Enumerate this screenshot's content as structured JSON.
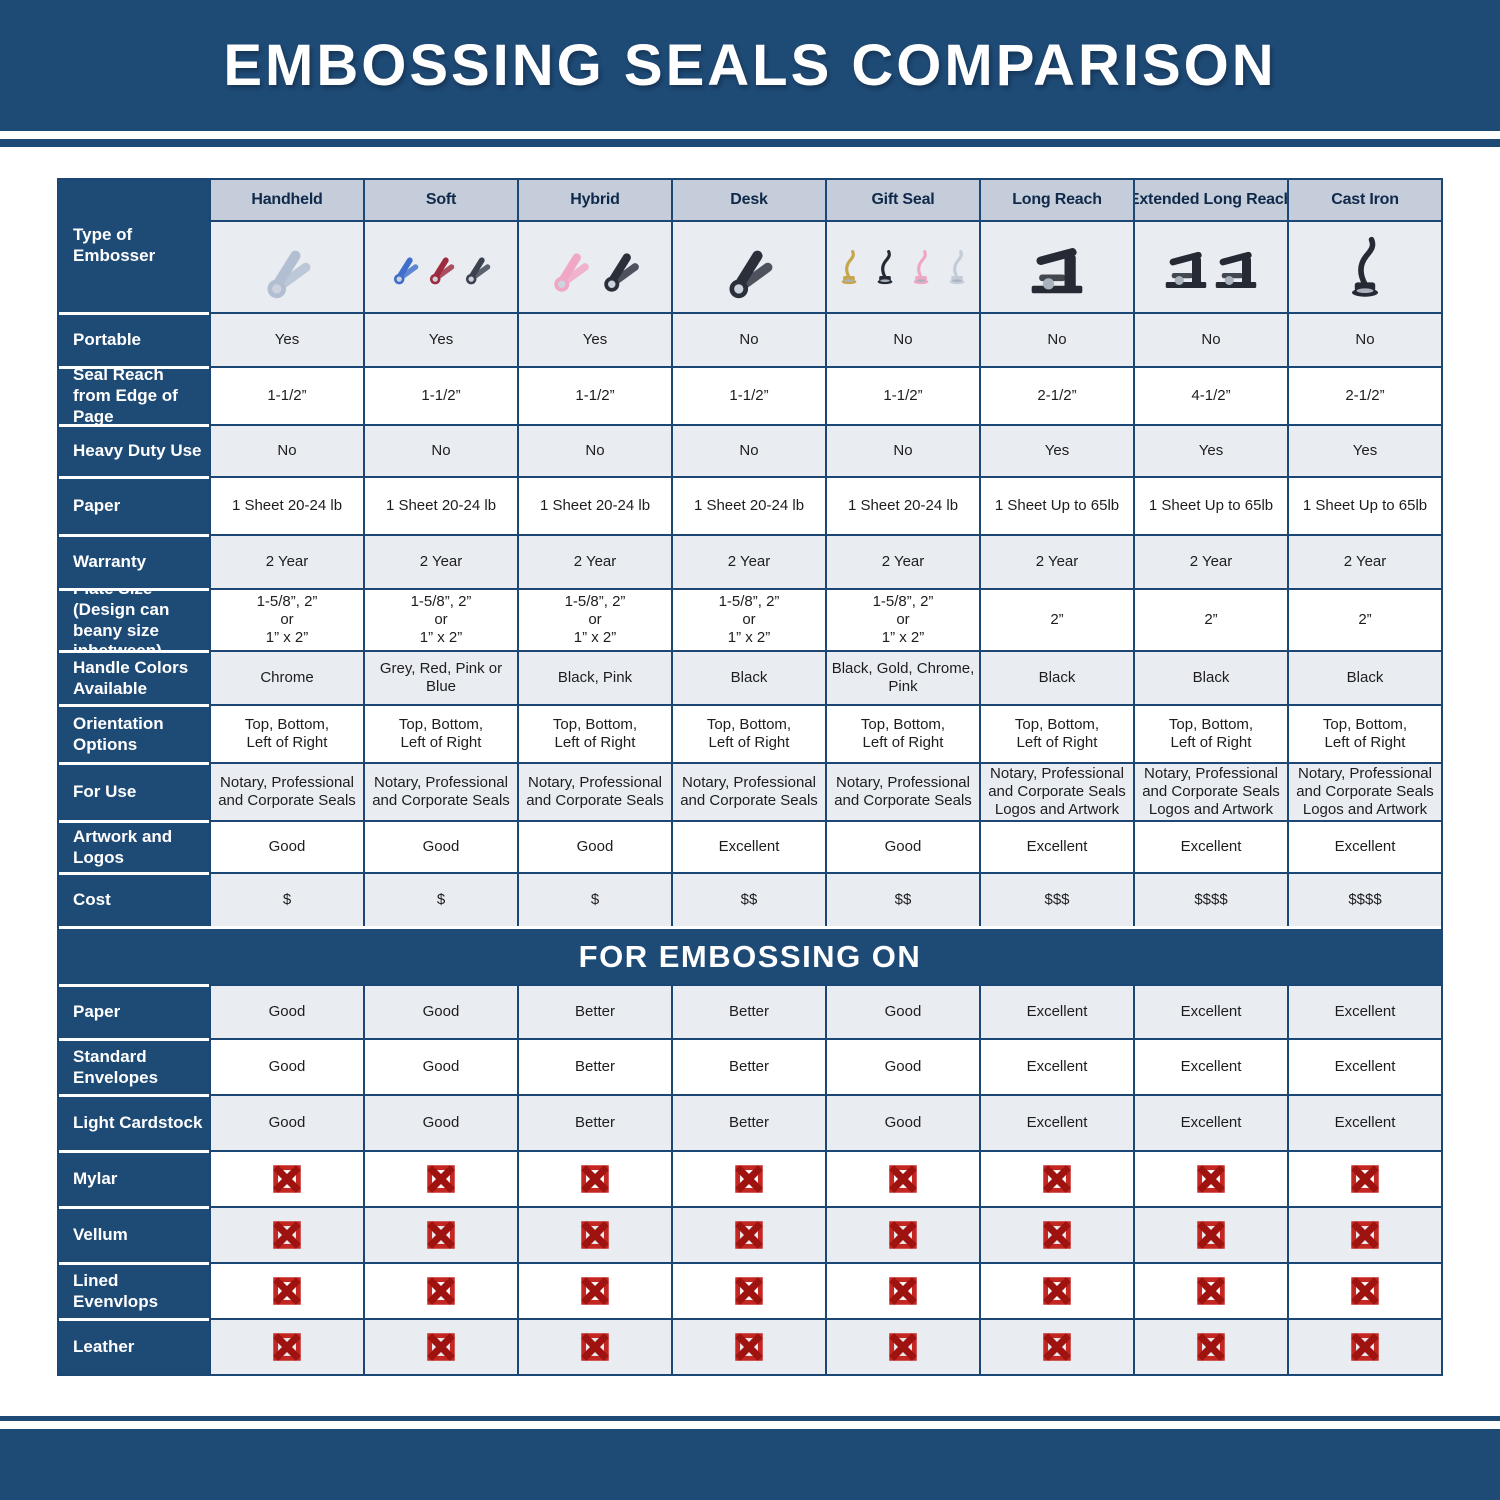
{
  "page": {
    "title": "EMBOSSING SEALS COMPARISON",
    "section_break_label": "FOR EMBOSSING ON"
  },
  "theme": {
    "navy": "#1e4a76",
    "grid_border": "#1c4674",
    "header_cell_bg": "#c4cdd9",
    "alt_row_bg": "#e9edf1",
    "x_red_dark": "#9e1210",
    "x_red_bright": "#c42722"
  },
  "chart_data": {
    "type": "table",
    "title": "EMBOSSING SEALS COMPARISON",
    "section_break_label": "FOR EMBOSSING ON",
    "corner_label": "Type of Embosser",
    "columns": [
      {
        "name": "Handheld",
        "style": "hand",
        "product_colors": [
          "#b2bed2"
        ]
      },
      {
        "name": "Soft",
        "style": "hand",
        "product_colors": [
          "#3f6fca",
          "#9e2b3e",
          "#3c4250"
        ]
      },
      {
        "name": "Hybrid",
        "style": "hand",
        "product_colors": [
          "#f0a6c6",
          "#2b2f3a"
        ]
      },
      {
        "name": "Desk",
        "style": "hand",
        "product_colors": [
          "#2b2f3a"
        ]
      },
      {
        "name": "Gift Seal",
        "style": "upright",
        "product_colors": [
          "#c7a54a",
          "#262a34",
          "#f0a6c6",
          "#c3ccd9"
        ]
      },
      {
        "name": "Long Reach",
        "style": "desk",
        "product_colors": [
          "#262a34"
        ]
      },
      {
        "name": "Extended Long Reach",
        "style": "desk",
        "product_colors": [
          "#262a34",
          "#262a34"
        ]
      },
      {
        "name": "Cast Iron",
        "style": "upright",
        "product_colors": [
          "#262a34"
        ]
      }
    ],
    "spec_rows": [
      {
        "label": "Portable",
        "values": [
          "Yes",
          "Yes",
          "Yes",
          "No",
          "No",
          "No",
          "No",
          "No"
        ]
      },
      {
        "label": "Seal Reach from Edge of Page",
        "values": [
          "1-1/2”",
          "1-1/2”",
          "1-1/2”",
          "1-1/2”",
          "1-1/2”",
          "2-1/2”",
          "4-1/2”",
          "2-1/2”"
        ]
      },
      {
        "label": "Heavy Duty Use",
        "values": [
          "No",
          "No",
          "No",
          "No",
          "No",
          "Yes",
          "Yes",
          "Yes"
        ]
      },
      {
        "label": "Paper",
        "values": [
          "1 Sheet 20-24 lb",
          "1 Sheet 20-24 lb",
          "1 Sheet 20-24 lb",
          "1 Sheet 20-24 lb",
          "1 Sheet 20-24 lb",
          "1 Sheet Up to 65lb",
          "1 Sheet Up to 65lb",
          "1 Sheet Up to 65lb"
        ]
      },
      {
        "label": "Warranty",
        "values": [
          "2 Year",
          "2 Year",
          "2 Year",
          "2 Year",
          "2 Year",
          "2 Year",
          "2 Year",
          "2 Year"
        ]
      },
      {
        "label": "Plate Size (Design can beany size inbetween)",
        "values": [
          "1-5/8”, 2”\nor\n1” x 2”",
          "1-5/8”, 2”\nor\n1” x 2”",
          "1-5/8”, 2”\nor\n1” x 2”",
          "1-5/8”, 2”\nor\n1” x 2”",
          "1-5/8”, 2”\nor\n1” x 2”",
          "2”",
          "2”",
          "2”"
        ]
      },
      {
        "label": "Handle Colors Available",
        "values": [
          "Chrome",
          "Grey, Red, Pink or Blue",
          "Black, Pink",
          "Black",
          "Black, Gold, Chrome, Pink",
          "Black",
          "Black",
          "Black"
        ]
      },
      {
        "label": "Orientation Options",
        "values": [
          "Top, Bottom,\nLeft of Right",
          "Top, Bottom,\nLeft of Right",
          "Top, Bottom,\nLeft of Right",
          "Top, Bottom,\nLeft of Right",
          "Top, Bottom,\nLeft of Right",
          "Top, Bottom,\nLeft of Right",
          "Top, Bottom,\nLeft of Right",
          "Top, Bottom,\nLeft of Right"
        ]
      },
      {
        "label": "For Use",
        "values": [
          "Notary, Professional\nand Corporate Seals",
          "Notary, Professional\nand Corporate Seals",
          "Notary, Professional\nand Corporate Seals",
          "Notary, Professional\nand Corporate Seals",
          "Notary, Professional\nand Corporate Seals",
          "Notary, Professional\nand Corporate Seals\nLogos and Artwork",
          "Notary, Professional\nand Corporate Seals\nLogos and Artwork",
          "Notary, Professional\nand Corporate Seals\nLogos and Artwork"
        ]
      },
      {
        "label": "Artwork and Logos",
        "values": [
          "Good",
          "Good",
          "Good",
          "Excellent",
          "Good",
          "Excellent",
          "Excellent",
          "Excellent"
        ]
      },
      {
        "label": "Cost",
        "values": [
          "$",
          "$",
          "$",
          "$$",
          "$$",
          "$$$",
          "$$$$",
          "$$$$"
        ]
      }
    ],
    "embossing_rows": [
      {
        "label": "Paper",
        "values": [
          "Good",
          "Good",
          "Better",
          "Better",
          "Good",
          "Excellent",
          "Excellent",
          "Excellent"
        ]
      },
      {
        "label": "Standard Envelopes",
        "values": [
          "Good",
          "Good",
          "Better",
          "Better",
          "Good",
          "Excellent",
          "Excellent",
          "Excellent"
        ]
      },
      {
        "label": "Light Cardstock",
        "values": [
          "Good",
          "Good",
          "Better",
          "Better",
          "Good",
          "Excellent",
          "Excellent",
          "Excellent"
        ]
      },
      {
        "label": "Mylar",
        "values": [
          "✗",
          "✗",
          "✗",
          "✗",
          "✗",
          "✗",
          "✗",
          "✗"
        ]
      },
      {
        "label": "Vellum",
        "values": [
          "✗",
          "✗",
          "✗",
          "✗",
          "✗",
          "✗",
          "✗",
          "✗"
        ]
      },
      {
        "label": "Lined Evenvlops",
        "values": [
          "✗",
          "✗",
          "✗",
          "✗",
          "✗",
          "✗",
          "✗",
          "✗"
        ]
      },
      {
        "label": "Leather",
        "values": [
          "✗",
          "✗",
          "✗",
          "✗",
          "✗",
          "✗",
          "✗",
          "✗"
        ]
      }
    ]
  }
}
